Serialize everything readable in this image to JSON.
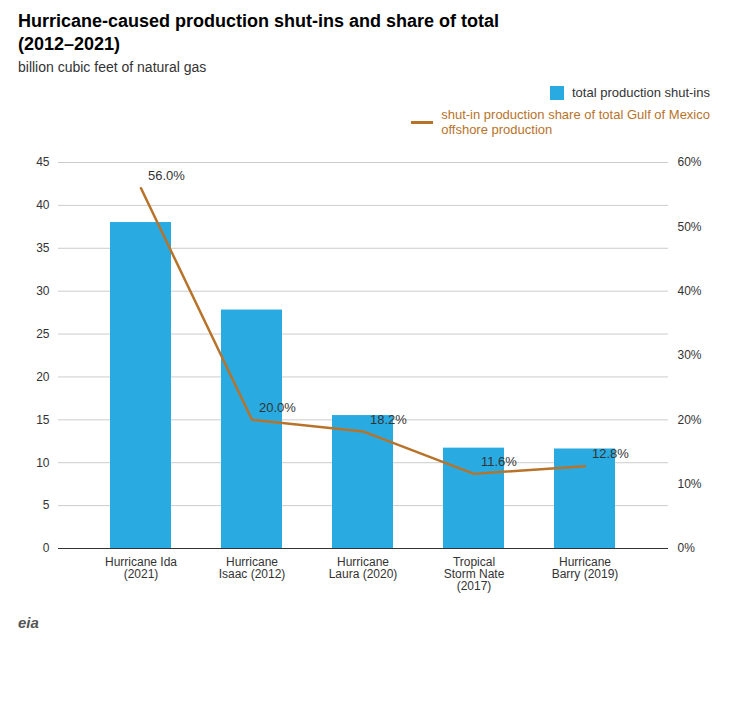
{
  "chart_data": {
    "type": "bar",
    "title": "Hurricane-caused production shut-ins and share of total\n(2012–2021)",
    "subtitle": "billion cubic feet of natural gas",
    "categories": [
      "Hurricane Ida\n(2021)",
      "Hurricane\nIsaac (2012)",
      "Hurricane\nLaura (2020)",
      "Tropical\nStorm Nate\n(2017)",
      "Hurricane\nBarry (2019)"
    ],
    "series": [
      {
        "name": "total production shut-ins",
        "type": "bar",
        "color": "#29ABE2",
        "values": [
          38.0,
          27.8,
          15.5,
          11.7,
          11.6
        ]
      },
      {
        "name": "shut-in production share of total Gulf of Mexico\noffshore production",
        "type": "line",
        "color": "#B8732A",
        "axis": "y2",
        "values": [
          56.0,
          20.0,
          18.2,
          11.6,
          12.8
        ],
        "data_labels": true,
        "value_labels": [
          "56.0%",
          "20.0%",
          "18.2%",
          "11.6%",
          "12.8%"
        ]
      }
    ],
    "ylim": [
      0,
      45
    ],
    "yticks": [
      0,
      5,
      10,
      15,
      20,
      25,
      30,
      35,
      40,
      45
    ],
    "y2lim": [
      0,
      60
    ],
    "y2ticks": [
      {
        "value": 0,
        "label": "0%"
      },
      {
        "value": 10,
        "label": "10%"
      },
      {
        "value": 20,
        "label": "20%"
      },
      {
        "value": 30,
        "label": "30%"
      },
      {
        "value": 40,
        "label": "40%"
      },
      {
        "value": 50,
        "label": "50%"
      },
      {
        "value": 60,
        "label": "60%"
      }
    ],
    "grid": true,
    "legend": "upper right",
    "annotations": [
      "eia"
    ]
  }
}
